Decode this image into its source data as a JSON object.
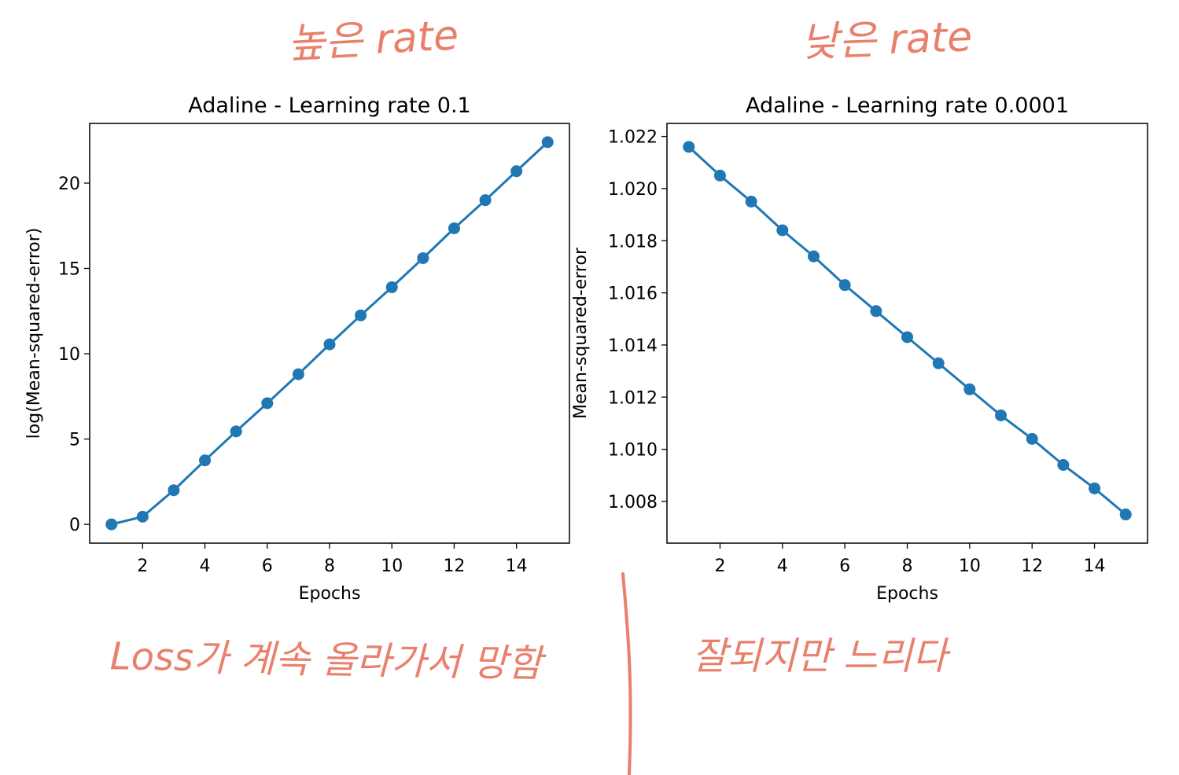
{
  "annotations": {
    "top_left": "높은 rate",
    "top_right": "낮은 rate",
    "bottom_left": "Loss가 계속 올라가서 망함",
    "bottom_right": "잘되지만 느리다"
  },
  "colors": {
    "series": "#1f77b4",
    "annotation": "#e8806c",
    "axes": "#000000"
  },
  "chart_data": [
    {
      "type": "line",
      "title": "Adaline - Learning rate 0.1",
      "xlabel": "Epochs",
      "ylabel": "log(Mean-squared-error)",
      "x": [
        1,
        2,
        3,
        4,
        5,
        6,
        7,
        8,
        9,
        10,
        11,
        12,
        13,
        14,
        15
      ],
      "series": [
        {
          "values": [
            0.0,
            0.45,
            2.0,
            3.75,
            5.45,
            7.1,
            8.8,
            10.55,
            12.25,
            13.9,
            15.6,
            17.35,
            19.0,
            20.7,
            22.4
          ]
        }
      ],
      "xlim": [
        0.3,
        15.7
      ],
      "ylim": [
        -1.1,
        23.5
      ],
      "xticks": [
        2,
        4,
        6,
        8,
        10,
        12,
        14
      ],
      "xtick_labels": [
        "2",
        "4",
        "6",
        "8",
        "10",
        "12",
        "14"
      ],
      "yticks": [
        0,
        5,
        10,
        15,
        20
      ],
      "ytick_labels": [
        "0",
        "5",
        "10",
        "15",
        "20"
      ],
      "marker": "circle",
      "grid": false
    },
    {
      "type": "line",
      "title": "Adaline - Learning rate 0.0001",
      "xlabel": "Epochs",
      "ylabel": "Mean-squared-error",
      "x": [
        1,
        2,
        3,
        4,
        5,
        6,
        7,
        8,
        9,
        10,
        11,
        12,
        13,
        14,
        15
      ],
      "series": [
        {
          "values": [
            1.0216,
            1.0205,
            1.0195,
            1.0184,
            1.0174,
            1.0163,
            1.0153,
            1.0143,
            1.0133,
            1.0123,
            1.0113,
            1.0104,
            1.0094,
            1.0085,
            1.0075
          ]
        }
      ],
      "xlim": [
        0.3,
        15.7
      ],
      "ylim": [
        1.0064,
        1.0225
      ],
      "xticks": [
        2,
        4,
        6,
        8,
        10,
        12,
        14
      ],
      "xtick_labels": [
        "2",
        "4",
        "6",
        "8",
        "10",
        "12",
        "14"
      ],
      "yticks": [
        1.008,
        1.01,
        1.012,
        1.014,
        1.016,
        1.018,
        1.02,
        1.022
      ],
      "ytick_labels": [
        "1.008",
        "1.010",
        "1.012",
        "1.014",
        "1.016",
        "1.018",
        "1.020",
        "1.022"
      ],
      "marker": "circle",
      "grid": false
    }
  ]
}
